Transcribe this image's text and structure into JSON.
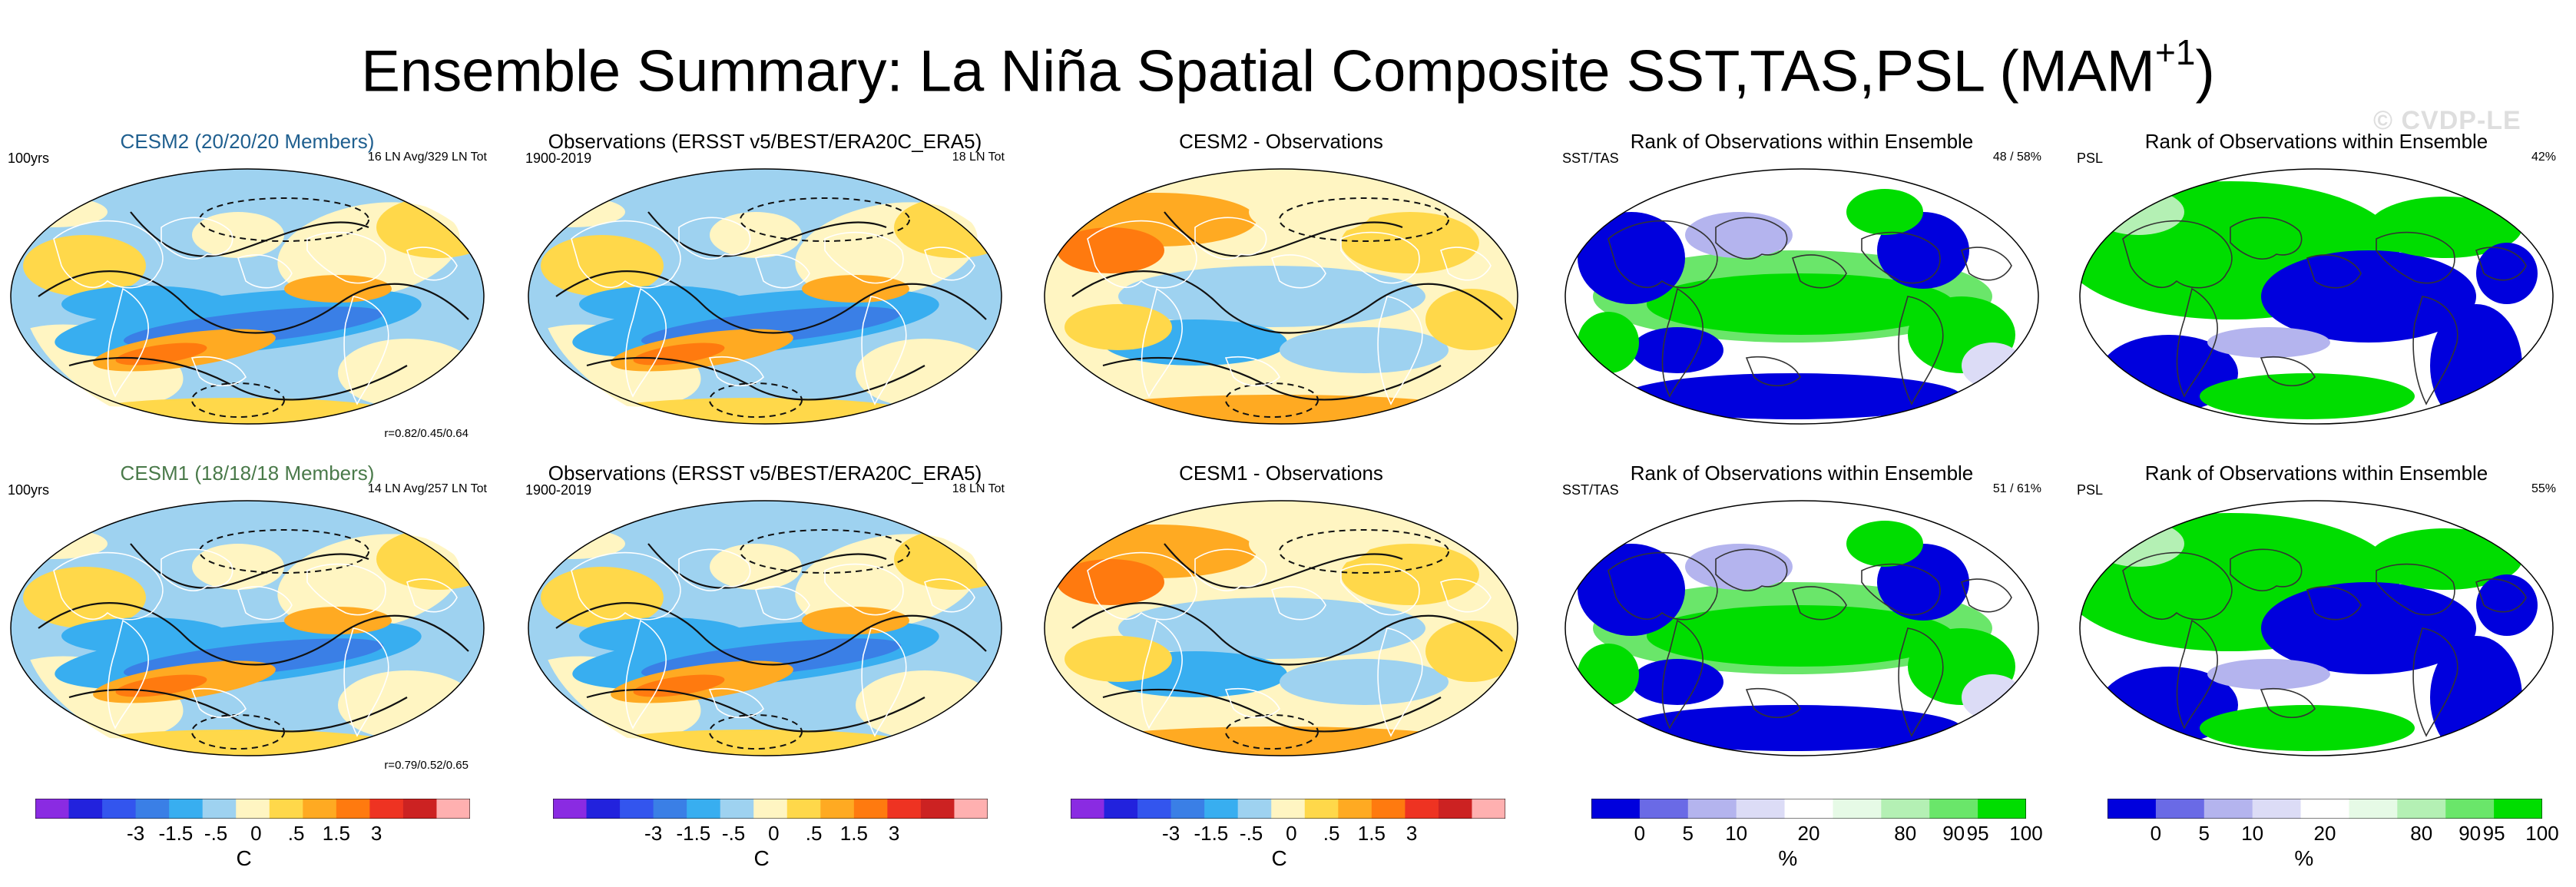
{
  "title": "Ensemble Summary: La Niña Spatial Composite SST,TAS,PSL (MAM",
  "title_sup": "+1",
  "title_close": ")",
  "watermark": "© CVDP-LE",
  "colors": {
    "diverging": [
      "#8a2be2",
      "#2222dd",
      "#3355ee",
      "#3a7fe6",
      "#38aef0",
      "#9ed2f0",
      "#fff5c2",
      "#ffd84a",
      "#ffaa22",
      "#ff7a0f",
      "#ee3322",
      "#cc2222",
      "#ffb0b0"
    ],
    "rank": [
      "#0000dd",
      "#6a6ae6",
      "#b4b4ee",
      "#dcdcf6",
      "#ffffff",
      "#e6fae6",
      "#b4f0b4",
      "#6ae66a",
      "#00dd00"
    ]
  },
  "rows": [
    {
      "panels": [
        {
          "kind": "model",
          "title": "CESM2 (20/20/20 Members)",
          "left": "100yrs",
          "right": "16 LN Avg/329 LN Tot",
          "corr": "r=0.82/0.45/0.64"
        },
        {
          "kind": "obs",
          "title": "Observations (ERSST v5/BEST/ERA20C_ERA5)",
          "left": "1900-2019",
          "right": "18 LN Tot"
        },
        {
          "kind": "diff",
          "title": "CESM2 - Observations",
          "left": "",
          "right": ""
        },
        {
          "kind": "rank",
          "title": "Rank of Observations within Ensemble",
          "left": "SST/TAS",
          "right": "48 /  58%"
        },
        {
          "kind": "rank2",
          "title": "Rank of Observations within Ensemble",
          "left": "PSL",
          "right": "42%"
        }
      ]
    },
    {
      "panels": [
        {
          "kind": "model",
          "title": "CESM1 (18/18/18 Members)",
          "left": "100yrs",
          "right": "14 LN Avg/257 LN Tot",
          "corr": "r=0.79/0.52/0.65"
        },
        {
          "kind": "obs",
          "title": "Observations (ERSST v5/BEST/ERA20C_ERA5)",
          "left": "1900-2019",
          "right": "18 LN Tot"
        },
        {
          "kind": "diff",
          "title": "CESM1 - Observations",
          "left": "",
          "right": ""
        },
        {
          "kind": "rank",
          "title": "Rank of Observations within Ensemble",
          "left": "SST/TAS",
          "right": "51 /  61%"
        },
        {
          "kind": "rank2",
          "title": "Rank of Observations within Ensemble",
          "left": "PSL",
          "right": "55%"
        }
      ]
    }
  ],
  "colorbars": [
    {
      "type": "temp",
      "ticks": [
        "-3",
        "-1.5",
        "-.5",
        "0",
        ".5",
        "1.5",
        "3"
      ],
      "unit": "C"
    },
    {
      "type": "temp",
      "ticks": [
        "-3",
        "-1.5",
        "-.5",
        "0",
        ".5",
        "1.5",
        "3"
      ],
      "unit": "C"
    },
    {
      "type": "temp",
      "ticks": [
        "-3",
        "-1.5",
        "-.5",
        "0",
        ".5",
        "1.5",
        "3"
      ],
      "unit": "C"
    },
    {
      "type": "rank",
      "ticks": [
        "0",
        "5",
        "10",
        "20",
        "80",
        "90",
        "95",
        "100"
      ],
      "unit": "%"
    },
    {
      "type": "rank",
      "ticks": [
        "0",
        "5",
        "10",
        "20",
        "80",
        "90",
        "95",
        "100"
      ],
      "unit": "%"
    }
  ],
  "chart_data": {
    "type": "heatmap",
    "title": "Ensemble Summary: La Niña Spatial Composite SST,TAS,PSL (MAM+1)",
    "panels": [
      "CESM2 (20/20/20 Members)",
      "Observations (ERSST v5/BEST/ERA20C_ERA5)",
      "CESM2 - Observations",
      "Rank of Observations within Ensemble",
      "Rank of Observations within Ensemble",
      "CESM1 (18/18/18 Members)",
      "Observations (ERSST v5/BEST/ERA20C_ERA5)",
      "CESM1 - Observations",
      "Rank of Observations within Ensemble",
      "Rank of Observations within Ensemble"
    ],
    "temperature_levels": [
      -4,
      -3,
      -2,
      -1.5,
      -1,
      -0.5,
      -0.25,
      0,
      0.25,
      0.5,
      1,
      1.5,
      2,
      3,
      4
    ],
    "temperature_unit": "C",
    "rank_levels": [
      0,
      5,
      10,
      20,
      80,
      90,
      95,
      100
    ],
    "rank_unit": "%"
  }
}
